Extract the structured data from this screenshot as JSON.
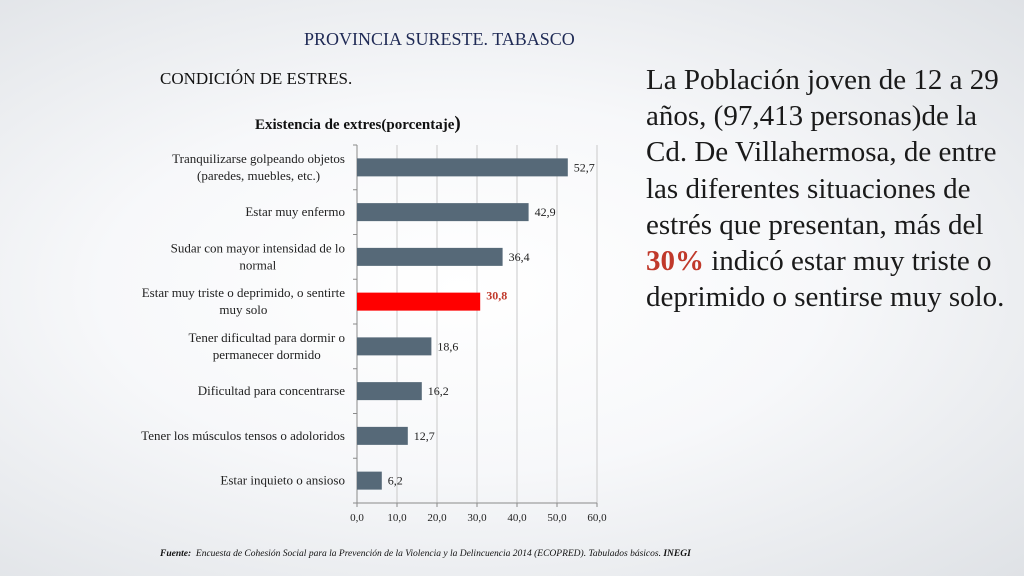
{
  "slide_title": "PROVINCIA SURESTE. TABASCO",
  "subtitle": "CONDICIÓN DE ESTRES.",
  "side_text": {
    "before": "La Población joven de 12 a 29 años, (97,413 personas)de la Cd. De Villahermosa, de entre las diferentes situaciones de estrés que presentan, más del ",
    "highlight": "30%",
    "after": " indicó estar muy triste o deprimido o sentirse muy solo."
  },
  "footnote": {
    "label": "Fuente:",
    "text": "Encuesta de Cohesión Social para la Prevención de la Violencia y la Delincuencia 2014 (ECOPRED). Tabulados básicos.",
    "source": "INEGI"
  },
  "colors": {
    "bar": "#566978",
    "highlight_bar": "#ff0000",
    "highlight_text": "#c0392b",
    "title": "#1f2a55"
  },
  "chart_data": {
    "type": "bar",
    "orientation": "horizontal",
    "title": "Existencia de extres(porcentaje",
    "title_paren": ")",
    "categories": [
      [
        "Tranquilizarse golpeando objetos",
        "(paredes, muebles, etc.)"
      ],
      [
        "Estar muy enfermo"
      ],
      [
        "Sudar con mayor intensidad de lo",
        "normal"
      ],
      [
        "Estar muy triste o deprimido, o sentirte",
        "muy solo"
      ],
      [
        "Tener dificultad para dormir o",
        "permanecer dormido"
      ],
      [
        "Dificultad para concentrarse"
      ],
      [
        "Tener los músculos tensos o adoloridos"
      ],
      [
        "Estar inquieto o ansioso"
      ]
    ],
    "values": [
      52.7,
      42.9,
      36.4,
      30.8,
      18.6,
      16.2,
      12.7,
      6.2
    ],
    "value_labels": [
      "52,7",
      "42,9",
      "36,4",
      "30,8",
      "18,6",
      "16,2",
      "12,7",
      "6,2"
    ],
    "highlight_index": 3,
    "xlim": [
      0,
      60
    ],
    "ticks": [
      0,
      10,
      20,
      30,
      40,
      50,
      60
    ],
    "tick_labels": [
      "0,0",
      "10,0",
      "20,0",
      "30,0",
      "40,0",
      "50,0",
      "60,0"
    ],
    "grid": true
  }
}
